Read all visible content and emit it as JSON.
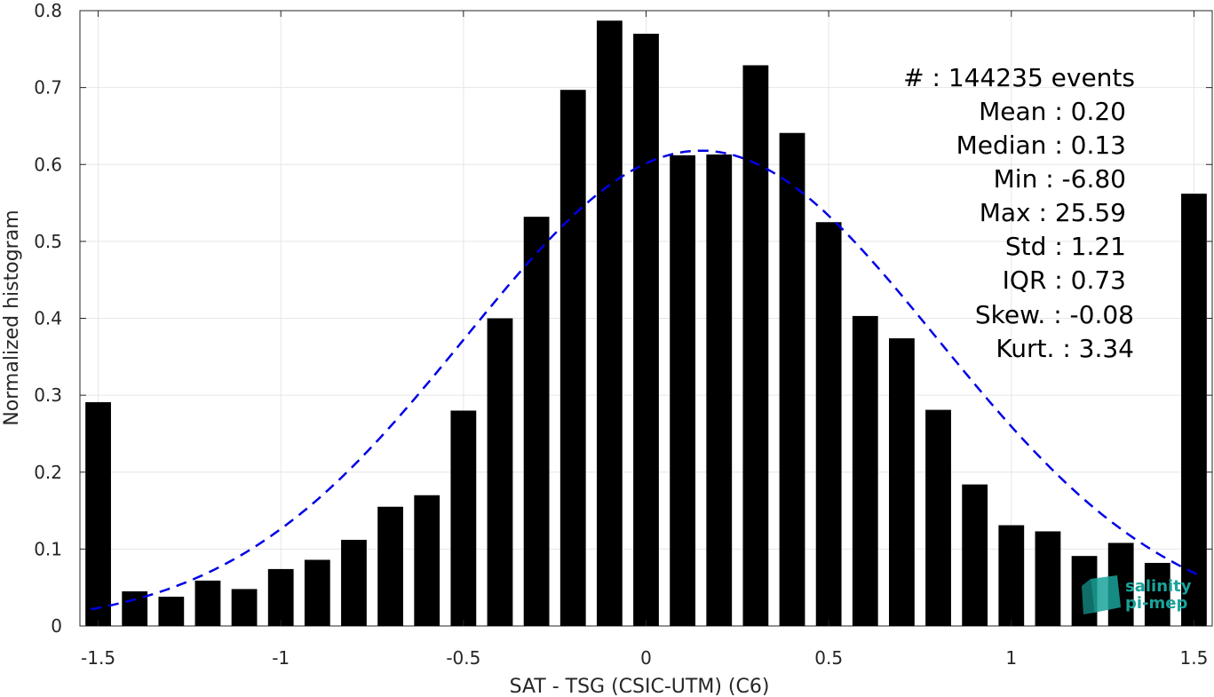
{
  "chart_data": {
    "type": "bar",
    "title": "",
    "xlabel": "SAT - TSG (CSIC-UTM) (C6)",
    "ylabel": "Normalized histogram",
    "xlim": [
      -1.55,
      1.55
    ],
    "ylim": [
      0,
      0.8
    ],
    "grid": true,
    "x_ticks": [
      -1.5,
      -1,
      -0.5,
      0,
      0.5,
      1,
      1.5
    ],
    "x_tick_labels": [
      "-1.5",
      "-1",
      "-0.5",
      "0",
      "0.5",
      "1",
      "1.5"
    ],
    "y_ticks": [
      0,
      0.1,
      0.2,
      0.3,
      0.4,
      0.5,
      0.6,
      0.7,
      0.8
    ],
    "y_tick_labels": [
      "0",
      "0.1",
      "0.2",
      "0.3",
      "0.4",
      "0.5",
      "0.6",
      "0.7",
      "0.8"
    ],
    "bin_centers": [
      -1.5,
      -1.4,
      -1.3,
      -1.2,
      -1.1,
      -1.0,
      -0.9,
      -0.8,
      -0.7,
      -0.6,
      -0.5,
      -0.4,
      -0.3,
      -0.2,
      -0.1,
      0.0,
      0.1,
      0.2,
      0.3,
      0.4,
      0.5,
      0.6,
      0.7,
      0.8,
      0.9,
      1.0,
      1.1,
      1.2,
      1.3,
      1.4,
      1.5
    ],
    "values": [
      0.291,
      0.045,
      0.038,
      0.059,
      0.048,
      0.074,
      0.086,
      0.112,
      0.155,
      0.17,
      0.28,
      0.4,
      0.532,
      0.697,
      0.787,
      0.77,
      0.612,
      0.613,
      0.729,
      0.641,
      0.525,
      0.403,
      0.374,
      0.281,
      0.184,
      0.131,
      0.123,
      0.091,
      0.108,
      0.082,
      0.562
    ],
    "bar_color": "#000000",
    "fit_curve": {
      "style": "dashed",
      "color": "#0000e6",
      "mean": 0.15,
      "std": 0.645,
      "amplitude": 0.618,
      "x_range": [
        -1.52,
        1.52
      ]
    },
    "stats": [
      "#  : 144235 events",
      "Mean : 0.20",
      "Median : 0.13",
      "Min : -6.80",
      "Max : 25.59",
      "Std : 1.21",
      "IQR : 0.73",
      "Skew. : -0.08",
      "Kurt. : 3.34"
    ]
  },
  "logo": {
    "line1": "salinity",
    "line2": "pi-mep",
    "color": "#1aa39a"
  }
}
